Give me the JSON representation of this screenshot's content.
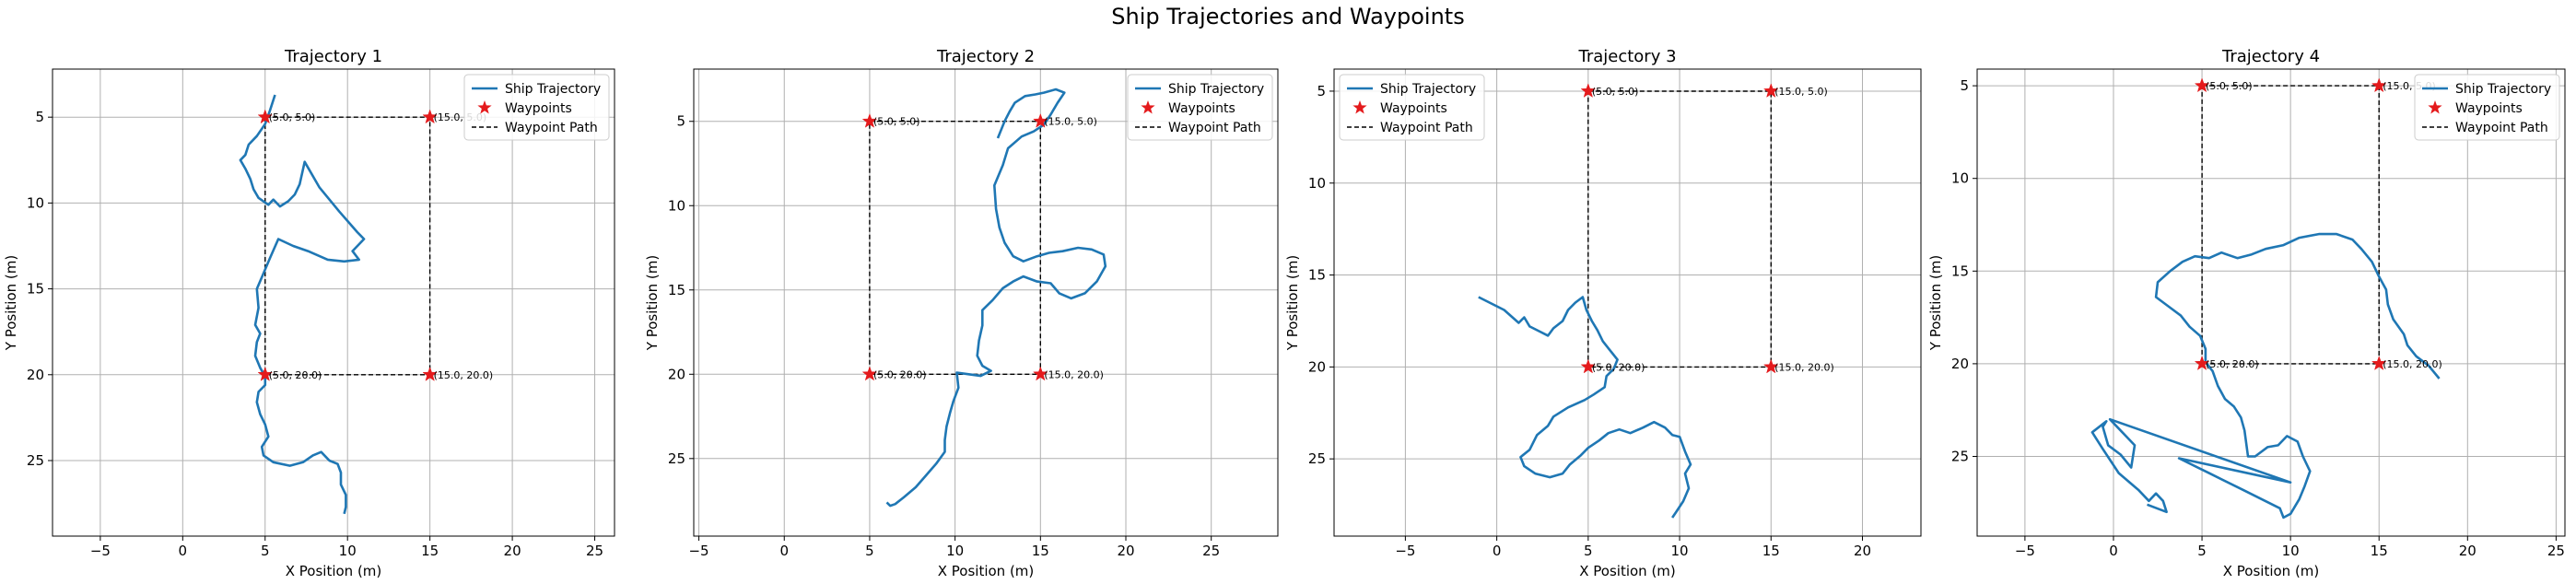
{
  "figure": {
    "title": "Ship Trajectories and Waypoints",
    "colors": {
      "trajectory": "#1f77b4",
      "waypoint": "#e41a1c",
      "path": "#000000",
      "grid": "#b0b0b0"
    }
  },
  "chart_data": [
    {
      "type": "line",
      "title": "Trajectory 1",
      "xlabel": "X Position (m)",
      "ylabel": "Y Position (m)",
      "xlim": [
        -7.9,
        26.2
      ],
      "ylim": [
        29.4,
        2.2
      ],
      "xticks": [
        -5,
        0,
        5,
        10,
        15,
        20,
        25
      ],
      "yticks": [
        5,
        10,
        15,
        20,
        25
      ],
      "grid": true,
      "legend": {
        "position": "upper-right",
        "entries": [
          "Ship Trajectory",
          "Waypoints",
          "Waypoint Path"
        ]
      },
      "waypoint_path": [
        [
          5,
          5
        ],
        [
          15,
          5
        ],
        [
          15,
          20
        ],
        [
          5,
          20
        ],
        [
          5,
          5
        ]
      ],
      "waypoints": [
        {
          "x": 5,
          "y": 5,
          "label": "(5.0, 5.0)"
        },
        {
          "x": 15,
          "y": 5,
          "label": "(15.0, 5.0)"
        },
        {
          "x": 5,
          "y": 20,
          "label": "(5.0, 20.0)"
        },
        {
          "x": 15,
          "y": 20,
          "label": "(15.0, 20.0)"
        }
      ],
      "trajectory": [
        [
          5.6,
          3.7
        ],
        [
          5.3,
          4.6
        ],
        [
          5.0,
          5.4
        ],
        [
          4.5,
          6.1
        ],
        [
          4.0,
          6.6
        ],
        [
          3.8,
          7.2
        ],
        [
          3.5,
          7.5
        ],
        [
          3.8,
          8.0
        ],
        [
          4.1,
          8.6
        ],
        [
          4.3,
          9.2
        ],
        [
          4.6,
          9.7
        ],
        [
          5.2,
          10.1
        ],
        [
          5.5,
          9.8
        ],
        [
          5.9,
          10.2
        ],
        [
          6.4,
          9.9
        ],
        [
          6.8,
          9.5
        ],
        [
          7.1,
          8.9
        ],
        [
          7.4,
          7.6
        ],
        [
          8.3,
          9.1
        ],
        [
          9.5,
          10.5
        ],
        [
          10.6,
          11.7
        ],
        [
          11.0,
          12.1
        ],
        [
          10.3,
          12.8
        ],
        [
          10.7,
          13.3
        ],
        [
          9.8,
          13.4
        ],
        [
          8.8,
          13.3
        ],
        [
          7.6,
          12.8
        ],
        [
          6.7,
          12.5
        ],
        [
          5.8,
          12.1
        ],
        [
          5.3,
          13.2
        ],
        [
          4.9,
          14.1
        ],
        [
          4.5,
          15.0
        ],
        [
          4.6,
          16.1
        ],
        [
          4.4,
          17.1
        ],
        [
          4.7,
          17.6
        ],
        [
          4.5,
          18.1
        ],
        [
          4.4,
          18.9
        ],
        [
          4.7,
          19.6
        ],
        [
          5.0,
          20.1
        ],
        [
          5.0,
          20.6
        ],
        [
          4.6,
          21.0
        ],
        [
          4.5,
          21.6
        ],
        [
          4.7,
          22.3
        ],
        [
          5.0,
          22.9
        ],
        [
          5.2,
          23.6
        ],
        [
          4.8,
          24.2
        ],
        [
          4.9,
          24.7
        ],
        [
          5.5,
          25.1
        ],
        [
          6.5,
          25.3
        ],
        [
          7.3,
          25.1
        ],
        [
          7.9,
          24.7
        ],
        [
          8.4,
          24.5
        ],
        [
          8.9,
          25.0
        ],
        [
          9.4,
          25.2
        ],
        [
          9.6,
          25.7
        ],
        [
          9.6,
          26.4
        ],
        [
          9.9,
          27.0
        ],
        [
          9.9,
          27.7
        ],
        [
          9.8,
          28.1
        ]
      ]
    },
    {
      "type": "line",
      "title": "Trajectory 2",
      "xlabel": "X Position (m)",
      "ylabel": "Y Position (m)",
      "xlim": [
        -5.3,
        28.9
      ],
      "ylim": [
        29.6,
        1.9
      ],
      "xticks": [
        -5,
        0,
        5,
        10,
        15,
        20,
        25
      ],
      "yticks": [
        5,
        10,
        15,
        20,
        25
      ],
      "grid": true,
      "legend": {
        "position": "upper-right",
        "entries": [
          "Ship Trajectory",
          "Waypoints",
          "Waypoint Path"
        ]
      },
      "waypoint_path": [
        [
          5,
          5
        ],
        [
          15,
          5
        ],
        [
          15,
          20
        ],
        [
          5,
          20
        ],
        [
          5,
          5
        ]
      ],
      "waypoints": [
        {
          "x": 5,
          "y": 5,
          "label": "(5.0, 5.0)"
        },
        {
          "x": 15,
          "y": 5,
          "label": "(15.0, 5.0)"
        },
        {
          "x": 5,
          "y": 20,
          "label": "(5.0, 20.0)"
        },
        {
          "x": 15,
          "y": 20,
          "label": "(15.0, 20.0)"
        }
      ],
      "trajectory": [
        [
          12.5,
          6.0
        ],
        [
          12.9,
          5.0
        ],
        [
          13.2,
          4.4
        ],
        [
          13.5,
          3.9
        ],
        [
          14.1,
          3.5
        ],
        [
          14.7,
          3.4
        ],
        [
          15.2,
          3.3
        ],
        [
          15.9,
          3.1
        ],
        [
          16.4,
          3.3
        ],
        [
          16.0,
          3.9
        ],
        [
          15.6,
          4.6
        ],
        [
          15.2,
          5.2
        ],
        [
          14.6,
          5.6
        ],
        [
          13.9,
          5.9
        ],
        [
          13.1,
          6.6
        ],
        [
          12.8,
          7.6
        ],
        [
          12.3,
          8.8
        ],
        [
          12.4,
          10.2
        ],
        [
          12.6,
          11.3
        ],
        [
          12.9,
          12.2
        ],
        [
          13.4,
          13.0
        ],
        [
          14.0,
          13.3
        ],
        [
          14.8,
          13.0
        ],
        [
          15.5,
          12.8
        ],
        [
          16.3,
          12.7
        ],
        [
          17.2,
          12.5
        ],
        [
          18.0,
          12.6
        ],
        [
          18.7,
          12.9
        ],
        [
          18.8,
          13.6
        ],
        [
          18.3,
          14.5
        ],
        [
          17.6,
          15.2
        ],
        [
          16.8,
          15.5
        ],
        [
          16.1,
          15.2
        ],
        [
          15.6,
          14.6
        ],
        [
          14.8,
          14.5
        ],
        [
          14.0,
          14.2
        ],
        [
          13.4,
          14.5
        ],
        [
          12.8,
          14.9
        ],
        [
          12.2,
          15.6
        ],
        [
          11.6,
          16.2
        ],
        [
          11.6,
          17.1
        ],
        [
          11.4,
          18.0
        ],
        [
          11.3,
          18.9
        ],
        [
          11.6,
          19.5
        ],
        [
          12.1,
          19.8
        ],
        [
          11.5,
          20.1
        ],
        [
          10.8,
          20.0
        ],
        [
          10.1,
          19.9
        ],
        [
          10.2,
          20.8
        ],
        [
          9.9,
          21.6
        ],
        [
          9.7,
          22.3
        ],
        [
          9.5,
          23.1
        ],
        [
          9.4,
          23.9
        ],
        [
          9.4,
          24.6
        ],
        [
          8.9,
          25.3
        ],
        [
          8.3,
          26.0
        ],
        [
          7.7,
          26.7
        ],
        [
          7.0,
          27.3
        ],
        [
          6.5,
          27.7
        ],
        [
          6.2,
          27.8
        ],
        [
          6.0,
          27.6
        ]
      ]
    },
    {
      "type": "line",
      "title": "Trajectory 3",
      "xlabel": "X Position (m)",
      "ylabel": "Y Position (m)",
      "xlim": [
        -8.9,
        23.2
      ],
      "ylim": [
        29.2,
        3.8
      ],
      "xticks": [
        -5,
        0,
        5,
        10,
        15,
        20
      ],
      "yticks": [
        5,
        10,
        15,
        20,
        25
      ],
      "grid": true,
      "legend": {
        "position": "upper-left",
        "entries": [
          "Ship Trajectory",
          "Waypoints",
          "Waypoint Path"
        ]
      },
      "waypoint_path": [
        [
          5,
          5
        ],
        [
          15,
          5
        ],
        [
          15,
          20
        ],
        [
          5,
          20
        ],
        [
          5,
          5
        ]
      ],
      "waypoints": [
        {
          "x": 5,
          "y": 5,
          "label": "(5.0, 5.0)"
        },
        {
          "x": 15,
          "y": 5,
          "label": "(15.0, 5.0)"
        },
        {
          "x": 5,
          "y": 20,
          "label": "(5.0, 20.0)"
        },
        {
          "x": 15,
          "y": 20,
          "label": "(15.0, 20.0)"
        }
      ],
      "trajectory": [
        [
          -1.0,
          16.2
        ],
        [
          0.4,
          16.9
        ],
        [
          1.2,
          17.6
        ],
        [
          1.5,
          17.3
        ],
        [
          1.8,
          17.8
        ],
        [
          2.4,
          18.1
        ],
        [
          2.8,
          18.3
        ],
        [
          3.1,
          17.9
        ],
        [
          3.6,
          17.5
        ],
        [
          3.9,
          16.9
        ],
        [
          4.3,
          16.5
        ],
        [
          4.7,
          16.2
        ],
        [
          4.9,
          16.9
        ],
        [
          5.2,
          17.5
        ],
        [
          5.5,
          18.0
        ],
        [
          5.8,
          18.6
        ],
        [
          6.2,
          19.1
        ],
        [
          6.6,
          19.6
        ],
        [
          6.4,
          20.1
        ],
        [
          6.0,
          20.5
        ],
        [
          5.9,
          21.1
        ],
        [
          5.3,
          21.5
        ],
        [
          4.8,
          21.8
        ],
        [
          3.9,
          22.2
        ],
        [
          3.1,
          22.7
        ],
        [
          2.8,
          23.2
        ],
        [
          2.2,
          23.7
        ],
        [
          1.8,
          24.5
        ],
        [
          1.3,
          24.9
        ],
        [
          1.5,
          25.4
        ],
        [
          2.1,
          25.8
        ],
        [
          2.9,
          26.0
        ],
        [
          3.6,
          25.8
        ],
        [
          4.0,
          25.3
        ],
        [
          4.6,
          24.8
        ],
        [
          5.0,
          24.4
        ],
        [
          5.6,
          24.0
        ],
        [
          6.1,
          23.6
        ],
        [
          6.7,
          23.4
        ],
        [
          7.3,
          23.6
        ],
        [
          8.0,
          23.3
        ],
        [
          8.6,
          23.0
        ],
        [
          9.2,
          23.3
        ],
        [
          9.6,
          23.7
        ],
        [
          10.0,
          23.8
        ],
        [
          10.3,
          24.6
        ],
        [
          10.6,
          25.3
        ],
        [
          10.3,
          25.8
        ],
        [
          10.5,
          26.6
        ],
        [
          10.2,
          27.3
        ],
        [
          9.8,
          27.9
        ],
        [
          9.6,
          28.2
        ]
      ]
    },
    {
      "type": "line",
      "title": "Trajectory 4",
      "xlabel": "X Position (m)",
      "ylabel": "Y Position (m)",
      "xlim": [
        -7.7,
        25.5
      ],
      "ylim": [
        29.3,
        4.1
      ],
      "xticks": [
        -5,
        0,
        5,
        10,
        15,
        20,
        25
      ],
      "yticks": [
        5,
        10,
        15,
        20,
        25
      ],
      "grid": true,
      "legend": {
        "position": "upper-right",
        "entries": [
          "Ship Trajectory",
          "Waypoints",
          "Waypoint Path"
        ]
      },
      "waypoint_path": [
        [
          5,
          5
        ],
        [
          15,
          5
        ],
        [
          15,
          20
        ],
        [
          5,
          20
        ],
        [
          5,
          5
        ]
      ],
      "waypoints": [
        {
          "x": 5,
          "y": 5,
          "label": "(5.0, 5.0)"
        },
        {
          "x": 15,
          "y": 5,
          "label": "(15.0, 5.0)"
        },
        {
          "x": 5,
          "y": 20,
          "label": "(5.0, 20.0)"
        },
        {
          "x": 15,
          "y": 20,
          "label": "(15.0, 20.0)"
        }
      ],
      "trajectory": [
        [
          18.4,
          20.8
        ],
        [
          17.8,
          20.1
        ],
        [
          17.1,
          19.6
        ],
        [
          16.6,
          19.0
        ],
        [
          16.4,
          18.4
        ],
        [
          15.8,
          17.6
        ],
        [
          15.5,
          16.8
        ],
        [
          15.4,
          16.0
        ],
        [
          15.0,
          15.3
        ],
        [
          14.6,
          14.5
        ],
        [
          14.0,
          13.8
        ],
        [
          13.5,
          13.3
        ],
        [
          12.6,
          13.0
        ],
        [
          11.6,
          13.0
        ],
        [
          10.5,
          13.2
        ],
        [
          9.6,
          13.6
        ],
        [
          8.6,
          13.8
        ],
        [
          7.8,
          14.1
        ],
        [
          7.0,
          14.3
        ],
        [
          6.1,
          14.0
        ],
        [
          5.4,
          14.3
        ],
        [
          4.6,
          14.2
        ],
        [
          3.9,
          14.5
        ],
        [
          3.2,
          15.0
        ],
        [
          2.5,
          15.6
        ],
        [
          2.4,
          16.4
        ],
        [
          3.1,
          16.9
        ],
        [
          3.8,
          17.4
        ],
        [
          4.3,
          18.0
        ],
        [
          4.9,
          18.5
        ],
        [
          5.2,
          19.2
        ],
        [
          5.2,
          19.9
        ],
        [
          5.6,
          20.4
        ],
        [
          5.9,
          21.2
        ],
        [
          6.3,
          21.9
        ],
        [
          6.8,
          22.3
        ],
        [
          7.2,
          22.9
        ],
        [
          7.4,
          23.6
        ],
        [
          7.5,
          24.3
        ],
        [
          7.6,
          25.0
        ],
        [
          8.0,
          25.0
        ],
        [
          8.7,
          24.5
        ],
        [
          9.3,
          24.4
        ],
        [
          9.8,
          23.9
        ],
        [
          10.4,
          24.2
        ],
        [
          10.7,
          25.0
        ],
        [
          11.1,
          25.8
        ],
        [
          10.8,
          26.6
        ],
        [
          10.5,
          27.3
        ],
        [
          10.0,
          28.1
        ],
        [
          9.6,
          28.3
        ],
        [
          9.4,
          27.8
        ],
        [
          7.3,
          26.8
        ],
        [
          5.4,
          25.9
        ],
        [
          3.7,
          25.1
        ],
        [
          10.0,
          26.4
        ],
        [
          -0.2,
          23.0
        ],
        [
          1.2,
          24.4
        ],
        [
          1.0,
          25.6
        ],
        [
          0.4,
          24.9
        ],
        [
          -0.3,
          24.4
        ],
        [
          -0.6,
          23.4
        ],
        [
          -0.4,
          23.1
        ],
        [
          -1.2,
          23.7
        ],
        [
          -0.6,
          24.6
        ],
        [
          0.3,
          25.9
        ],
        [
          1.4,
          26.8
        ],
        [
          2.0,
          27.4
        ],
        [
          2.4,
          27.0
        ],
        [
          2.8,
          27.4
        ],
        [
          3.0,
          28.0
        ],
        [
          1.9,
          27.6
        ]
      ]
    }
  ]
}
